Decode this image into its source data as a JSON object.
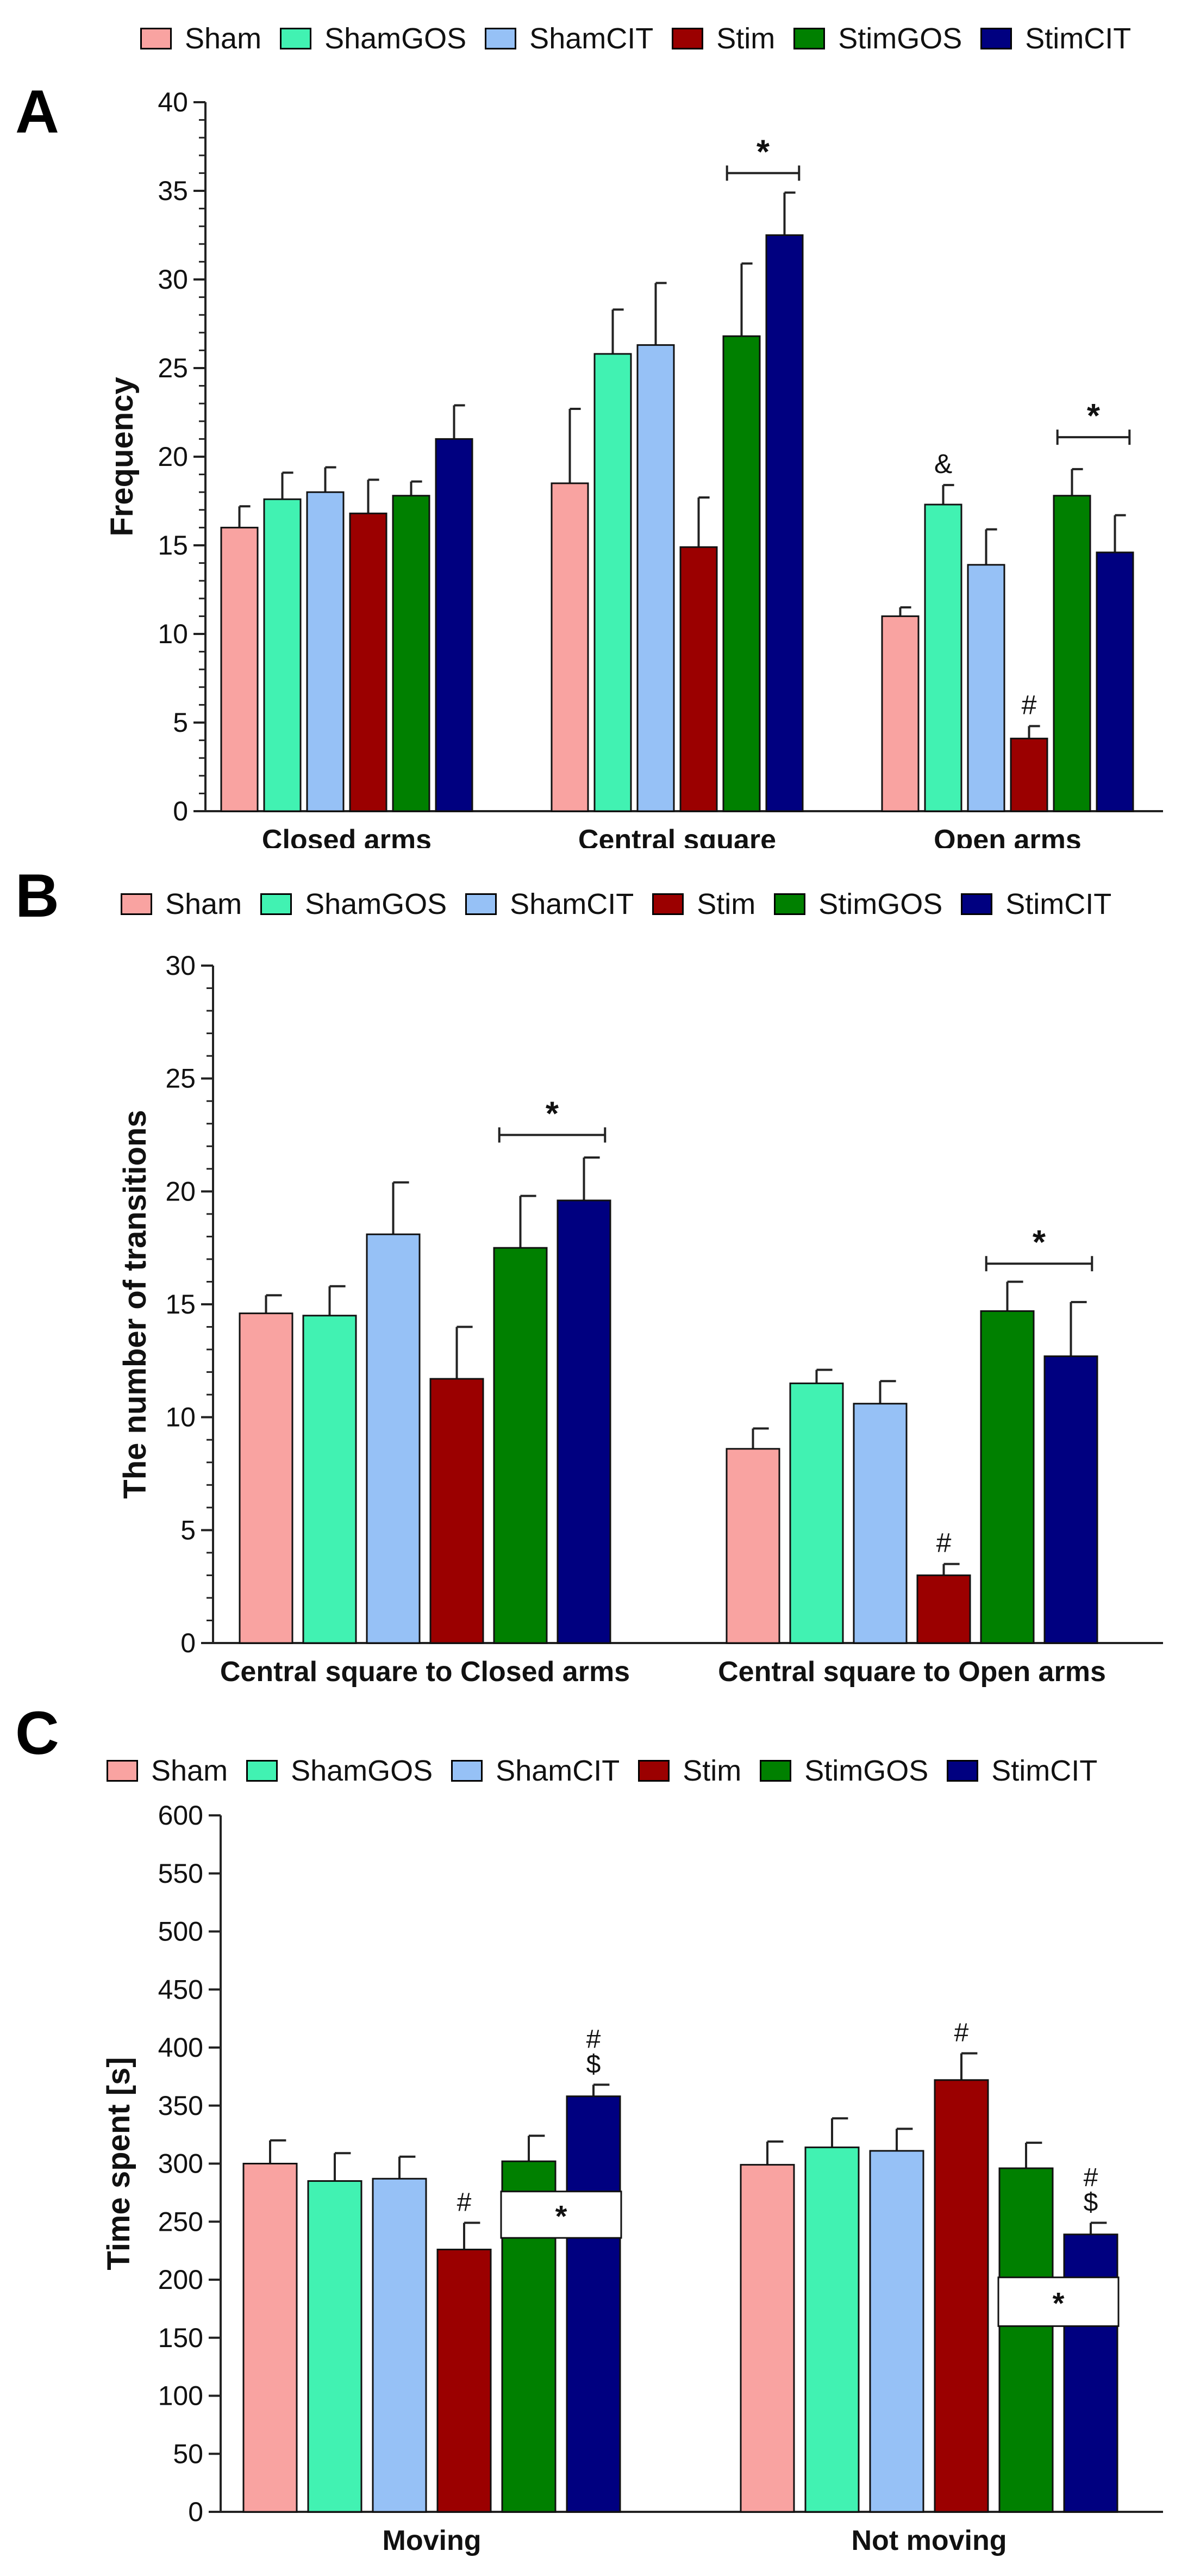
{
  "colors": {
    "Sham": "#f9a3a1",
    "ShamGOS": "#41f2b2",
    "ShamCIT": "#96c1f6",
    "Stim": "#9b0000",
    "StimGOS": "#008000",
    "StimCIT": "#000080"
  },
  "legend": [
    "Sham",
    "ShamGOS",
    "ShamCIT",
    "Stim",
    "StimGOS",
    "StimCIT"
  ],
  "chart_data": [
    {
      "panel": "A",
      "type": "bar",
      "ylabel": "Frequency",
      "ylim": [
        0,
        40
      ],
      "yticks": [
        0,
        5,
        10,
        15,
        20,
        25,
        30,
        35,
        40
      ],
      "categories": [
        "Closed arms",
        "Central square",
        "Open arms"
      ],
      "series": [
        {
          "name": "Sham",
          "values": [
            16.0,
            18.5,
            11.0
          ],
          "errors": [
            1.2,
            4.2,
            0.5
          ]
        },
        {
          "name": "ShamGOS",
          "values": [
            17.6,
            25.8,
            17.3
          ],
          "errors": [
            1.5,
            2.5,
            1.1
          ]
        },
        {
          "name": "ShamCIT",
          "values": [
            18.0,
            26.3,
            13.9
          ],
          "errors": [
            1.4,
            3.5,
            2.0
          ]
        },
        {
          "name": "Stim",
          "values": [
            16.8,
            14.9,
            4.1
          ],
          "errors": [
            1.9,
            2.8,
            0.7
          ]
        },
        {
          "name": "StimGOS",
          "values": [
            17.8,
            26.8,
            17.8
          ],
          "errors": [
            0.8,
            4.1,
            1.5
          ]
        },
        {
          "name": "StimCIT",
          "values": [
            21.0,
            32.5,
            14.6
          ],
          "errors": [
            1.9,
            2.4,
            2.1
          ]
        }
      ],
      "annotations": [
        {
          "category": "Open arms",
          "series": "ShamGOS",
          "text": "&"
        },
        {
          "category": "Open arms",
          "series": "Stim",
          "text": "#"
        }
      ],
      "brackets": [
        {
          "category": "Central square",
          "from": "StimGOS",
          "to": "StimCIT",
          "y": 36.0,
          "text": "*"
        },
        {
          "category": "Open arms",
          "from": "StimGOS",
          "to": "StimCIT",
          "y": 21.1,
          "text": "*"
        }
      ]
    },
    {
      "panel": "B",
      "type": "bar",
      "ylabel": "The number of transitions",
      "ylim": [
        0,
        30
      ],
      "yticks": [
        0,
        5,
        10,
        15,
        20,
        25,
        30
      ],
      "categories": [
        "Central square to Closed arms",
        "Central square to Open arms"
      ],
      "series": [
        {
          "name": "Sham",
          "values": [
            14.6,
            8.6
          ],
          "errors": [
            0.8,
            0.9
          ]
        },
        {
          "name": "ShamGOS",
          "values": [
            14.5,
            11.5
          ],
          "errors": [
            1.3,
            0.6
          ]
        },
        {
          "name": "ShamCIT",
          "values": [
            18.1,
            10.6
          ],
          "errors": [
            2.3,
            1.0
          ]
        },
        {
          "name": "Stim",
          "values": [
            11.7,
            3.0
          ],
          "errors": [
            2.3,
            0.5
          ]
        },
        {
          "name": "StimGOS",
          "values": [
            17.5,
            14.7
          ],
          "errors": [
            2.3,
            1.3
          ]
        },
        {
          "name": "StimCIT",
          "values": [
            19.6,
            12.7
          ],
          "errors": [
            1.9,
            2.4
          ]
        }
      ],
      "annotations": [
        {
          "category": "Central square to Open arms",
          "series": "Stim",
          "text": "#"
        }
      ],
      "brackets": [
        {
          "category": "Central square to Closed arms",
          "from": "StimGOS",
          "to": "StimCIT",
          "y": 22.5,
          "text": "*"
        },
        {
          "category": "Central square to Open arms",
          "from": "StimGOS",
          "to": "StimCIT",
          "y": 16.8,
          "text": "*"
        }
      ]
    },
    {
      "panel": "C",
      "type": "bar",
      "ylabel": "Time spent [s]",
      "ylim": [
        0,
        600
      ],
      "yticks": [
        0,
        50,
        100,
        150,
        200,
        250,
        300,
        350,
        400,
        450,
        500,
        550,
        600
      ],
      "categories": [
        "Moving",
        "Not moving"
      ],
      "series": [
        {
          "name": "Sham",
          "values": [
            300,
            299
          ],
          "errors": [
            20,
            20
          ]
        },
        {
          "name": "ShamGOS",
          "values": [
            285,
            314
          ],
          "errors": [
            24,
            25
          ]
        },
        {
          "name": "ShamCIT",
          "values": [
            287,
            311
          ],
          "errors": [
            19,
            19
          ]
        },
        {
          "name": "Stim",
          "values": [
            226,
            372
          ],
          "errors": [
            23,
            23
          ]
        },
        {
          "name": "StimGOS",
          "values": [
            302,
            296
          ],
          "errors": [
            22,
            22
          ]
        },
        {
          "name": "StimCIT",
          "values": [
            358,
            239
          ],
          "errors": [
            10,
            10
          ]
        }
      ],
      "annotations": [
        {
          "category": "Moving",
          "series": "Stim",
          "text": "#"
        },
        {
          "category": "Moving",
          "series": "StimCIT",
          "text": "#\n$"
        },
        {
          "category": "Not moving",
          "series": "Stim",
          "text": "#"
        },
        {
          "category": "Not moving",
          "series": "StimCIT",
          "text": "#\n$"
        }
      ],
      "boxes": [
        {
          "category": "Moving",
          "from": "StimGOS",
          "to": "StimCIT",
          "y_low": 236,
          "y_high": 276,
          "text": "*"
        },
        {
          "category": "Not moving",
          "from": "StimGOS",
          "to": "StimCIT",
          "y_low": 160,
          "y_high": 202,
          "text": "*"
        }
      ]
    }
  ]
}
